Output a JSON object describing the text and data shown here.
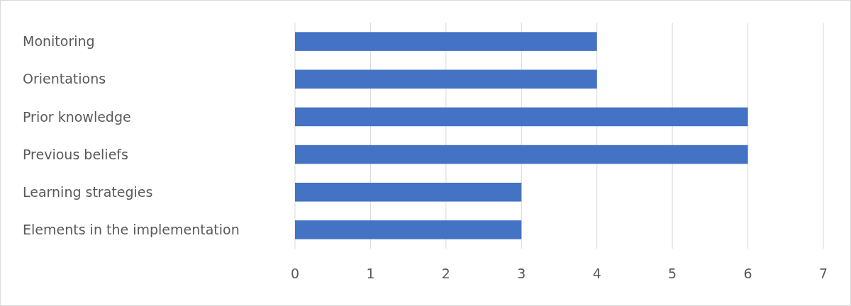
{
  "chart_data": {
    "type": "bar",
    "orientation": "horizontal",
    "categories": [
      "Monitoring",
      "Orientations",
      "Prior knowledge",
      "Previous beliefs",
      "Learning strategies",
      "Elements in the implementation"
    ],
    "values": [
      4,
      4,
      6,
      6,
      3,
      3
    ],
    "color": "#4472c4",
    "xlim": [
      0,
      7
    ],
    "xticks": [
      0,
      1,
      2,
      3,
      4,
      5,
      6,
      7
    ],
    "grid": "x"
  }
}
